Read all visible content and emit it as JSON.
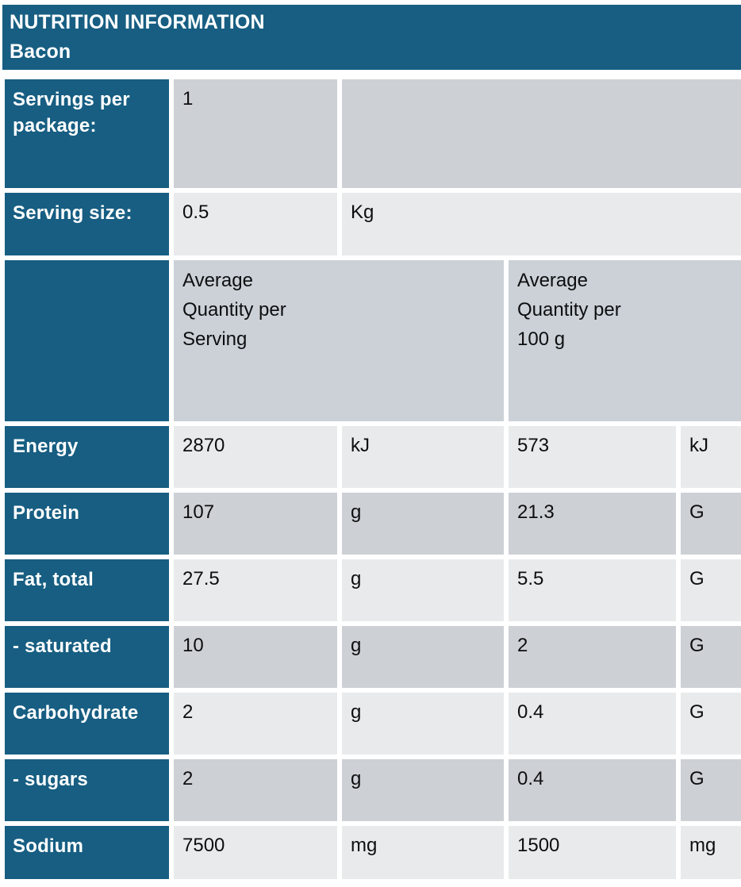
{
  "header": {
    "title": "NUTRITION INFORMATION",
    "subtitle": "Bacon"
  },
  "package_info": [
    {
      "label": "Servings per\npackage:",
      "value": "1",
      "unit": ""
    },
    {
      "label": "Serving size:",
      "value": "0.5",
      "unit": "Kg"
    }
  ],
  "column_headers": {
    "row_label": "",
    "per_serving": "Average\nQuantity per\nServing",
    "per_100g": "Average\nQuantity per\n100 g"
  },
  "nutrients": [
    {
      "label": "Energy",
      "qty_serving": "2870",
      "unit_serving": "kJ",
      "qty_100g": "573",
      "unit_100g": "kJ"
    },
    {
      "label": "Protein",
      "qty_serving": "107",
      "unit_serving": "g",
      "qty_100g": "21.3",
      "unit_100g": "G"
    },
    {
      "label": "Fat, total",
      "qty_serving": "27.5",
      "unit_serving": "g",
      "qty_100g": "5.5",
      "unit_100g": "G"
    },
    {
      "label": "- saturated",
      "qty_serving": "10",
      "unit_serving": "g",
      "qty_100g": "2",
      "unit_100g": "G"
    },
    {
      "label": "Carbohydrate",
      "qty_serving": "2",
      "unit_serving": "g",
      "qty_100g": "0.4",
      "unit_100g": "G"
    },
    {
      "label": "- sugars",
      "qty_serving": "2",
      "unit_serving": "g",
      "qty_100g": "0.4",
      "unit_100g": "G"
    },
    {
      "label": "Sodium",
      "qty_serving": "7500",
      "unit_serving": "mg",
      "qty_100g": "1500",
      "unit_100g": "mg"
    }
  ],
  "colors": {
    "teal": "#175E82",
    "row-light": "#E8EAEC",
    "row-dark": "#CDD0D4",
    "row-header": "#CBD1D7",
    "ink": "#0D0E10"
  }
}
